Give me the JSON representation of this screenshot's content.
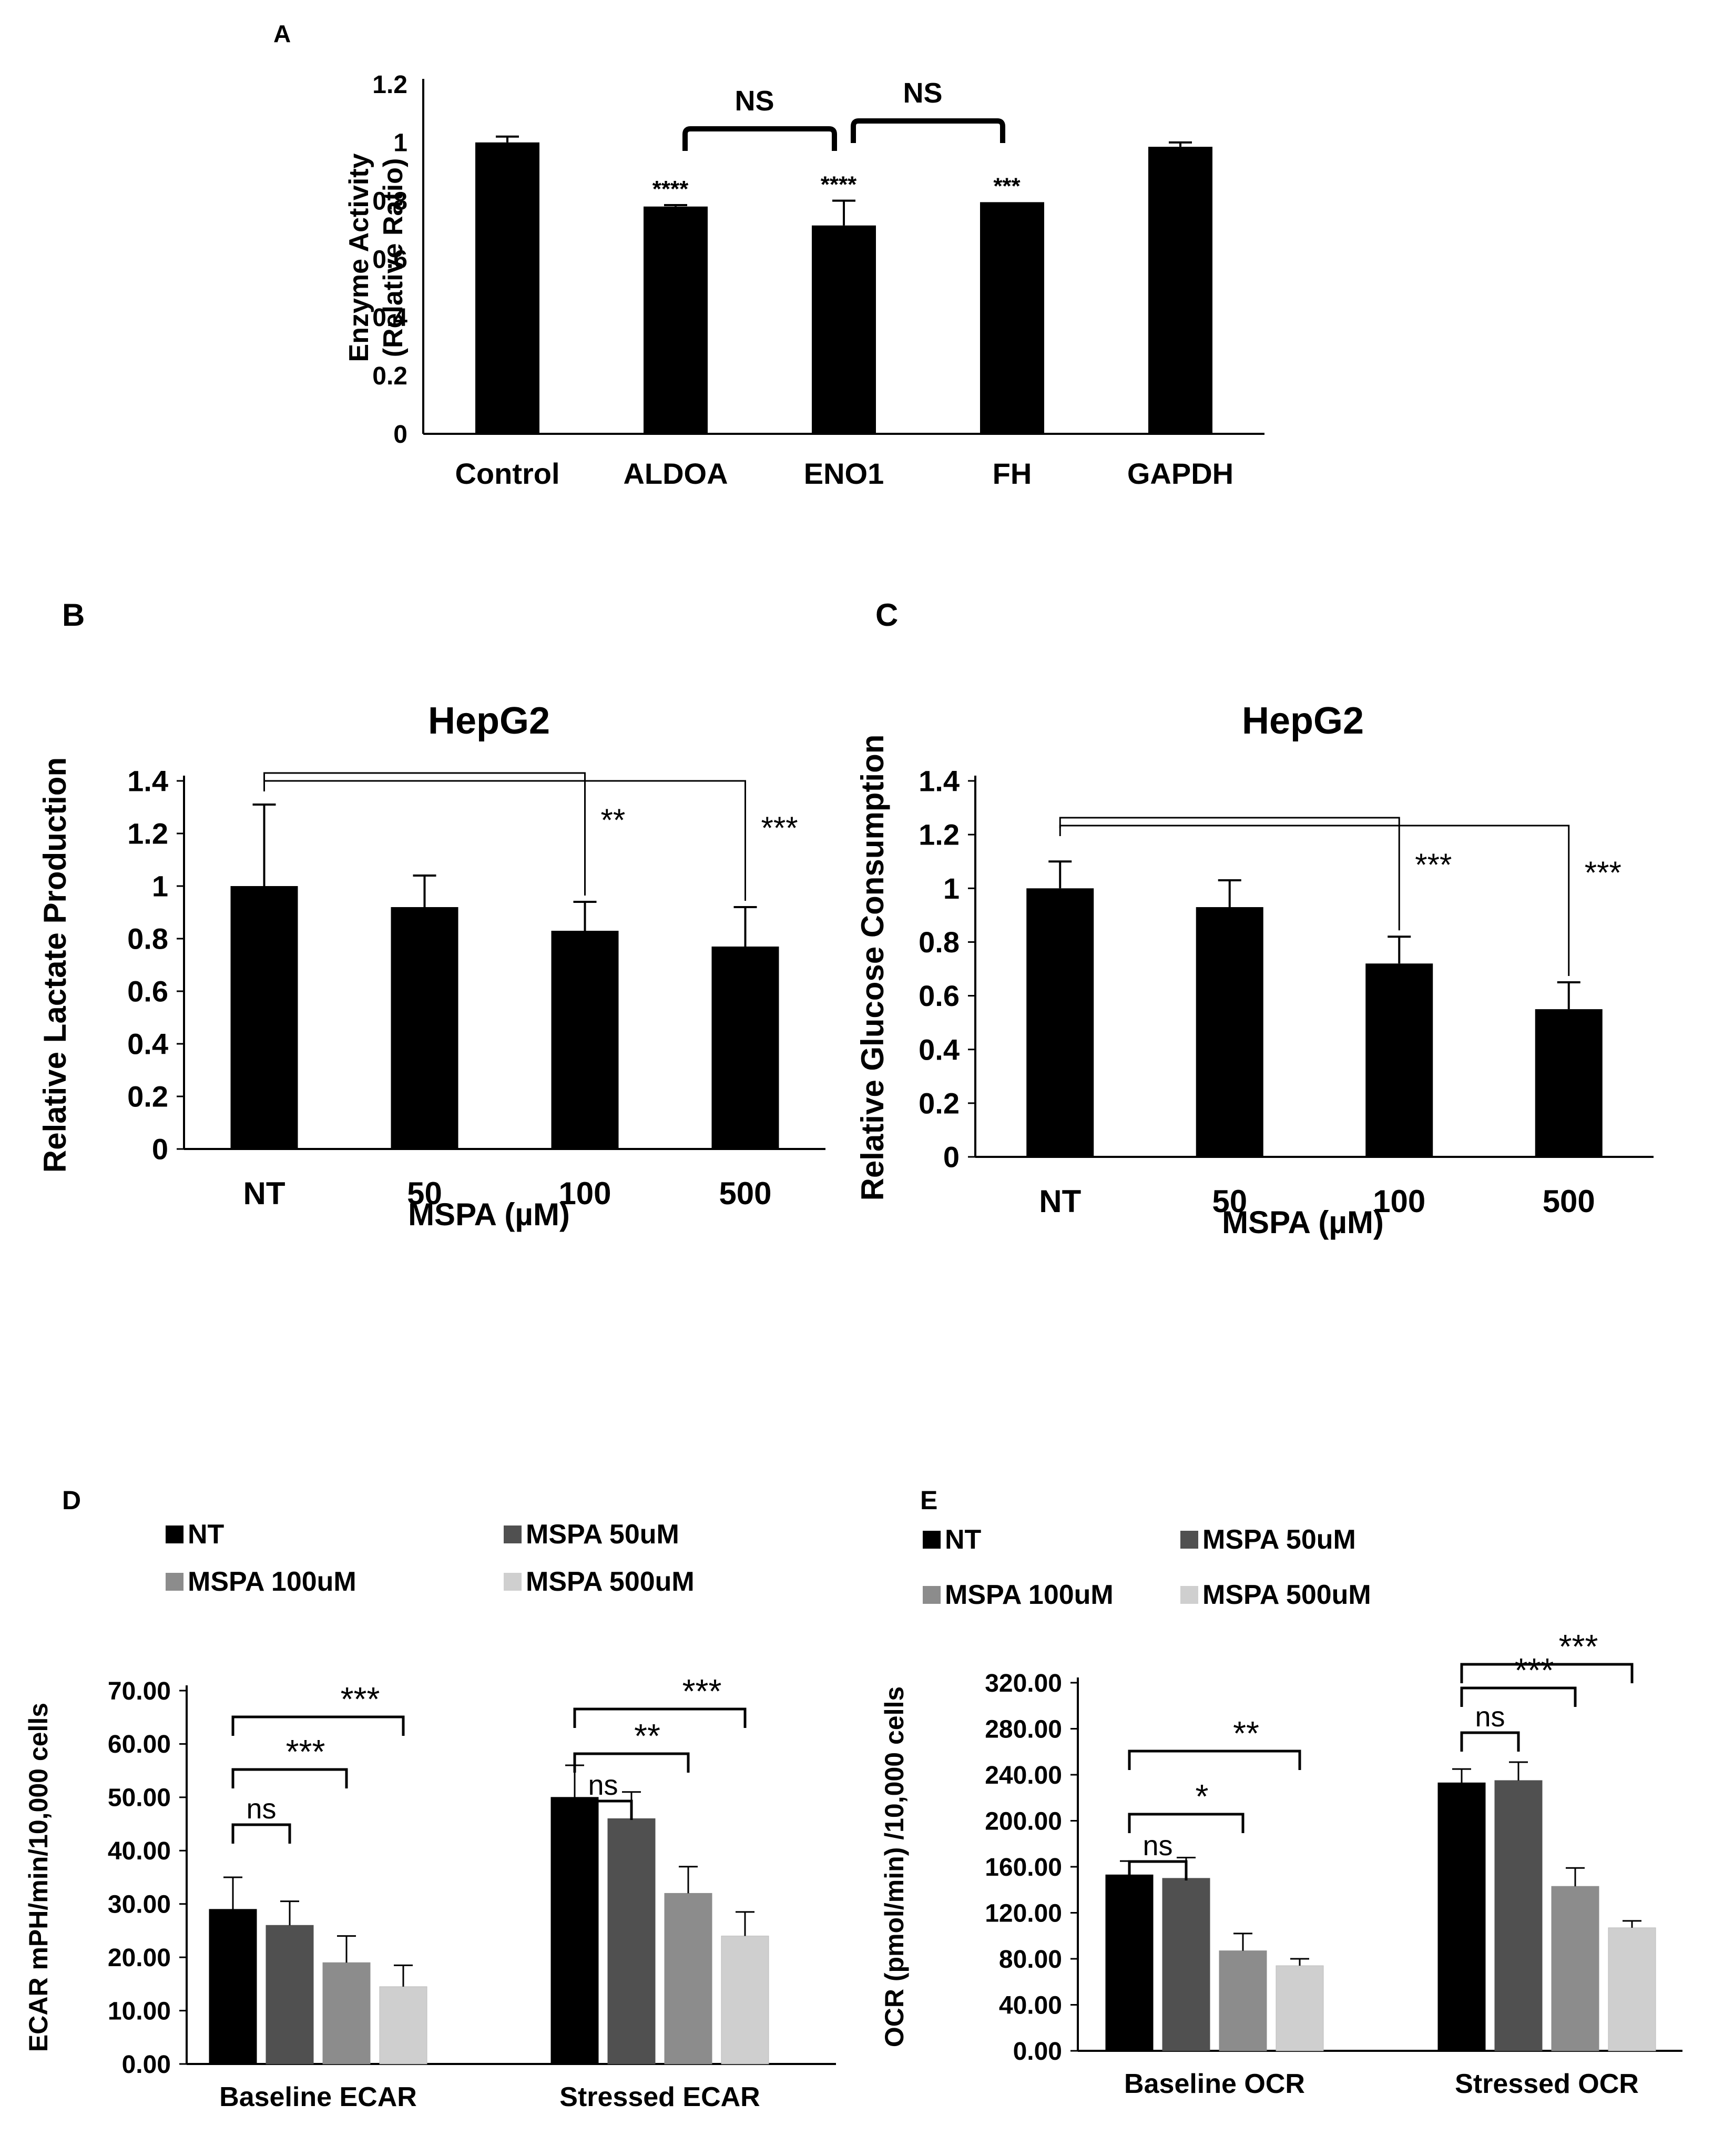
{
  "panels": [
    {
      "label": "A",
      "chart_data": {
        "type": "bar",
        "title": "",
        "ylabel": [
          "Enzyme Activity",
          "(Relative Ratio)"
        ],
        "xlabel": "",
        "ylim": [
          0,
          1.2
        ],
        "yticks": [
          0,
          0.2,
          0.4,
          0.6,
          0.8,
          1,
          1.2
        ],
        "ytick_labels": [
          "0",
          "0.2",
          "0.4",
          "0.6",
          "0.8",
          "1",
          "1.2"
        ],
        "categories": [
          "Control",
          "ALDOA",
          "ENO1",
          "FH",
          "GAPDH"
        ],
        "series": [
          {
            "name": "Enzyme Activity",
            "color": "#000000",
            "values": [
              1.0,
              0.78,
              0.715,
              0.795,
              0.985
            ],
            "errors": [
              0.02,
              0.005,
              0.085,
              0.0,
              0.015
            ]
          }
        ],
        "data_labels": [
          "",
          "****",
          "****",
          "***",
          ""
        ],
        "brackets": [
          {
            "from": 1,
            "to": 2,
            "label": "NS"
          },
          {
            "from": 2,
            "to": 3,
            "label": "NS"
          }
        ]
      }
    },
    {
      "label": "B",
      "chart_data": {
        "type": "bar",
        "title": "HepG2",
        "ylabel": "Relative Lactate Production",
        "xlabel": "MSPA (µM)",
        "ylim": [
          0,
          1.4
        ],
        "yticks": [
          0,
          0.2,
          0.4,
          0.6,
          0.8,
          1,
          1.2,
          1.4
        ],
        "ytick_labels": [
          "0",
          "0.2",
          "0.4",
          "0.6",
          "0.8",
          "1",
          "1.2",
          "1.4"
        ],
        "categories": [
          "NT",
          "50",
          "100",
          "500"
        ],
        "series": [
          {
            "name": "HepG2",
            "color": "#000000",
            "values": [
              1.0,
              0.92,
              0.83,
              0.77
            ],
            "errors": [
              0.31,
              0.12,
              0.11,
              0.15
            ]
          }
        ],
        "brackets": [
          {
            "from": 0,
            "to": 2,
            "label": "**"
          },
          {
            "from": 0,
            "to": 3,
            "label": "***"
          }
        ]
      }
    },
    {
      "label": "C",
      "chart_data": {
        "type": "bar",
        "title": "HepG2",
        "ylabel": "Relative Glucose Consumption",
        "xlabel": "MSPA (µM)",
        "ylim": [
          0,
          1.4
        ],
        "yticks": [
          0,
          0.2,
          0.4,
          0.6,
          0.8,
          1,
          1.2,
          1.4
        ],
        "ytick_labels": [
          "0",
          "0.2",
          "0.4",
          "0.6",
          "0.8",
          "1",
          "1.2",
          "1.4"
        ],
        "categories": [
          "NT",
          "50",
          "100",
          "500"
        ],
        "series": [
          {
            "name": "HepG2",
            "color": "#000000",
            "values": [
              1.0,
              0.93,
              0.72,
              0.55
            ],
            "errors": [
              0.1,
              0.1,
              0.1,
              0.1
            ]
          }
        ],
        "brackets": [
          {
            "from": 0,
            "to": 2,
            "label": "***"
          },
          {
            "from": 0,
            "to": 3,
            "label": "***"
          }
        ]
      }
    },
    {
      "label": "D",
      "chart_data": {
        "type": "bar",
        "title": "",
        "ylabel": "ECAR mPH/min/10,000 cells",
        "xlabel": "",
        "ylim": [
          0,
          70
        ],
        "yticks": [
          0,
          10,
          20,
          30,
          40,
          50,
          60,
          70
        ],
        "ytick_labels": [
          "0.00",
          "10.00",
          "20.00",
          "30.00",
          "40.00",
          "50.00",
          "60.00",
          "70.00"
        ],
        "categories": [
          "Baseline ECAR",
          "Stressed ECAR"
        ],
        "series": [
          {
            "name": "NT",
            "color": "#000000",
            "values": [
              29,
              50
            ],
            "errors": [
              6,
              6
            ]
          },
          {
            "name": "MSPA 50uM",
            "color": "#505050",
            "values": [
              26,
              46
            ],
            "errors": [
              4.5,
              5
            ]
          },
          {
            "name": "MSPA 100uM",
            "color": "#8c8c8c",
            "values": [
              19,
              32
            ],
            "errors": [
              5,
              5
            ]
          },
          {
            "name": "MSPA 500uM",
            "color": "#cfcfcf",
            "values": [
              14.5,
              24
            ],
            "errors": [
              4,
              4.5
            ]
          }
        ],
        "legend": {
          "position": "top",
          "columns": 2
        },
        "brackets": [
          {
            "group": 0,
            "from": 0,
            "to": 1,
            "label": "ns"
          },
          {
            "group": 0,
            "from": 0,
            "to": 2,
            "label": "***"
          },
          {
            "group": 0,
            "from": 0,
            "to": 3,
            "label": "***"
          },
          {
            "group": 1,
            "from": 0,
            "to": 1,
            "label": "ns"
          },
          {
            "group": 1,
            "from": 0,
            "to": 2,
            "label": "**"
          },
          {
            "group": 1,
            "from": 0,
            "to": 3,
            "label": "***"
          }
        ]
      }
    },
    {
      "label": "E",
      "chart_data": {
        "type": "bar",
        "title": "",
        "ylabel": "OCR (pmol/min) /10,000 cells",
        "xlabel": "",
        "ylim": [
          0,
          320
        ],
        "yticks": [
          0,
          40,
          80,
          120,
          160,
          200,
          240,
          280,
          320
        ],
        "ytick_labels": [
          "0.00",
          "40.00",
          "80.00",
          "120.00",
          "160.00",
          "200.00",
          "240.00",
          "280.00",
          "320.00"
        ],
        "categories": [
          "Baseline OCR",
          "Stressed OCR"
        ],
        "series": [
          {
            "name": "NT",
            "color": "#000000",
            "values": [
              153,
              233
            ],
            "errors": [
              12,
              12
            ]
          },
          {
            "name": "MSPA 50uM",
            "color": "#505050",
            "values": [
              150,
              235
            ],
            "errors": [
              18,
              16
            ]
          },
          {
            "name": "MSPA 100uM",
            "color": "#8c8c8c",
            "values": [
              87,
              143
            ],
            "errors": [
              15,
              16
            ]
          },
          {
            "name": "MSPA 500uM",
            "color": "#cfcfcf",
            "values": [
              74,
              107
            ],
            "errors": [
              6,
              6
            ]
          }
        ],
        "legend": {
          "position": "top",
          "columns": 2
        },
        "brackets": [
          {
            "group": 0,
            "from": 0,
            "to": 1,
            "label": "ns"
          },
          {
            "group": 0,
            "from": 0,
            "to": 2,
            "label": "*"
          },
          {
            "group": 0,
            "from": 0,
            "to": 3,
            "label": "**"
          },
          {
            "group": 1,
            "from": 0,
            "to": 1,
            "label": "ns"
          },
          {
            "group": 1,
            "from": 0,
            "to": 2,
            "label": "***"
          },
          {
            "group": 1,
            "from": 0,
            "to": 3,
            "label": "***"
          }
        ]
      }
    }
  ]
}
